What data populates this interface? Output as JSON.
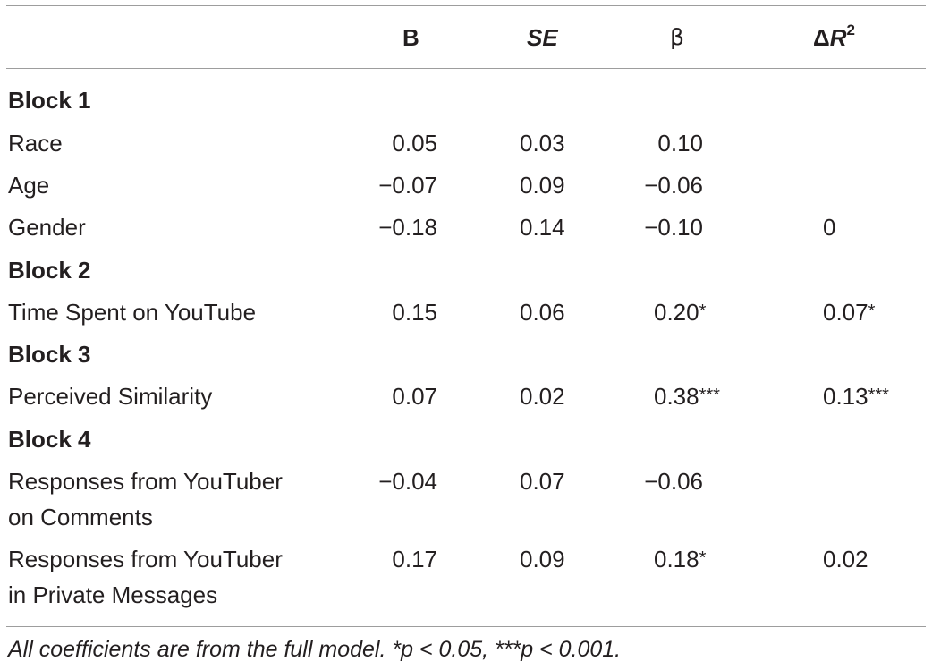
{
  "table": {
    "headers": {
      "b": "B",
      "se": "SE",
      "beta": "β",
      "delta_r2_delta": "Δ",
      "delta_r2_r": "R",
      "delta_r2_sup": "2"
    },
    "rows": [
      {
        "type": "block",
        "label": "Block 1"
      },
      {
        "type": "var",
        "label": "Race",
        "b": "0.05",
        "se": "0.03",
        "beta": "0.10",
        "beta_sig": "",
        "dr2": "",
        "dr2_sig": ""
      },
      {
        "type": "var",
        "label": "Age",
        "b": "−0.07",
        "se": "0.09",
        "beta": "−0.06",
        "beta_sig": "",
        "dr2": "",
        "dr2_sig": ""
      },
      {
        "type": "var",
        "label": "Gender",
        "b": "−0.18",
        "se": "0.14",
        "beta": "−0.10",
        "beta_sig": "",
        "dr2": "0",
        "dr2_sig": ""
      },
      {
        "type": "block",
        "label": "Block 2"
      },
      {
        "type": "var",
        "label": "Time Spent on YouTube",
        "b": "0.15",
        "se": "0.06",
        "beta": "0.20",
        "beta_sig": "*",
        "dr2": "0.07",
        "dr2_sig": "*"
      },
      {
        "type": "block",
        "label": "Block 3"
      },
      {
        "type": "var",
        "label": "Perceived Similarity",
        "b": "0.07",
        "se": "0.02",
        "beta": "0.38",
        "beta_sig": "***",
        "dr2": "0.13",
        "dr2_sig": "***"
      },
      {
        "type": "block",
        "label": "Block 4"
      },
      {
        "type": "var2",
        "label_line1": "Responses from YouTuber",
        "label_line2": "on Comments",
        "b": "−0.04",
        "se": "0.07",
        "beta": "−0.06",
        "beta_sig": "",
        "dr2": "",
        "dr2_sig": ""
      },
      {
        "type": "var2",
        "label_line1": "Responses from YouTuber",
        "label_line2": "in Private Messages",
        "b": "0.17",
        "se": "0.09",
        "beta": "0.18",
        "beta_sig": "*",
        "dr2": "0.02",
        "dr2_sig": ""
      }
    ],
    "note": "All coefficients are from the full model. *p < 0.05, ***p < 0.001."
  }
}
